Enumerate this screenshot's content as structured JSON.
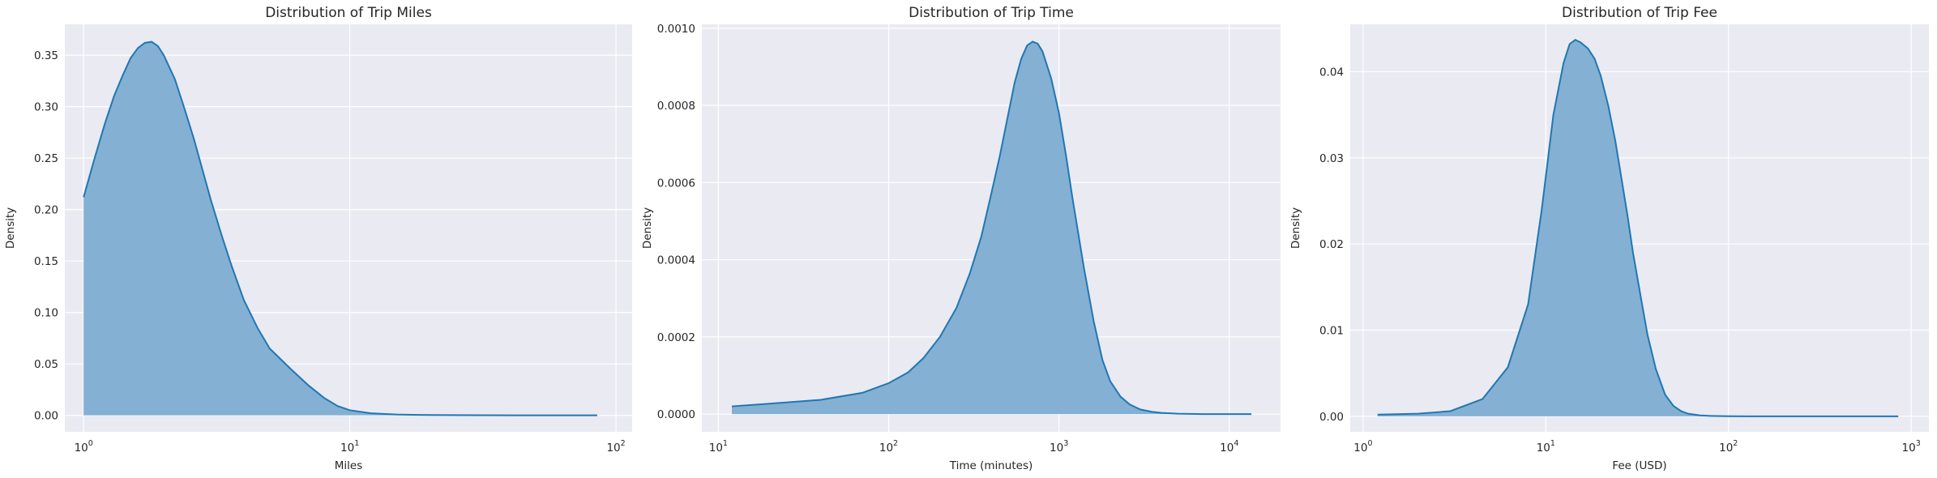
{
  "chart_data": [
    {
      "type": "area",
      "title": "Distribution of Trip Miles",
      "xlabel": "Miles",
      "ylabel": "Density",
      "xscale": "log",
      "xlim": [
        0.85,
        115
      ],
      "ylim": [
        -0.016,
        0.38
      ],
      "x_ticks": [
        {
          "value": 1,
          "base": "10",
          "exp": "0"
        },
        {
          "value": 10,
          "base": "10",
          "exp": "1"
        },
        {
          "value": 100,
          "base": "10",
          "exp": "2"
        }
      ],
      "y_ticks": [
        {
          "value": 0.0,
          "label": "0.00"
        },
        {
          "value": 0.05,
          "label": "0.05"
        },
        {
          "value": 0.1,
          "label": "0.10"
        },
        {
          "value": 0.15,
          "label": "0.15"
        },
        {
          "value": 0.2,
          "label": "0.20"
        },
        {
          "value": 0.25,
          "label": "0.25"
        },
        {
          "value": 0.3,
          "label": "0.30"
        },
        {
          "value": 0.35,
          "label": "0.35"
        }
      ],
      "grid": true,
      "fill_color": "#84b0d3",
      "line_color": "#1f77b4",
      "series": [
        {
          "x": [
            1.0,
            1.1,
            1.2,
            1.3,
            1.4,
            1.5,
            1.6,
            1.7,
            1.8,
            1.9,
            2.0,
            2.2,
            2.4,
            2.6,
            2.8,
            3.0,
            3.3,
            3.6,
            4.0,
            4.5,
            5.0,
            6.0,
            7.0,
            8.0,
            9.0,
            10.0,
            12.0,
            15.0,
            20.0,
            30.0,
            50.0,
            85.0
          ],
          "y": [
            0.212,
            0.25,
            0.283,
            0.31,
            0.33,
            0.347,
            0.357,
            0.362,
            0.363,
            0.359,
            0.35,
            0.327,
            0.297,
            0.268,
            0.238,
            0.21,
            0.175,
            0.145,
            0.112,
            0.085,
            0.065,
            0.045,
            0.029,
            0.017,
            0.009,
            0.005,
            0.002,
            0.0008,
            0.0003,
            0.0001,
            0.0,
            0.0
          ]
        }
      ]
    },
    {
      "type": "area",
      "title": "Distribution of Trip Time",
      "xlabel": "Time (minutes)",
      "ylabel": "Density",
      "xscale": "log",
      "xlim": [
        8.0,
        20000
      ],
      "ylim": [
        -4.6e-05,
        0.00101
      ],
      "x_ticks": [
        {
          "value": 10,
          "base": "10",
          "exp": "1"
        },
        {
          "value": 100,
          "base": "10",
          "exp": "2"
        },
        {
          "value": 1000,
          "base": "10",
          "exp": "3"
        },
        {
          "value": 10000,
          "base": "10",
          "exp": "4"
        }
      ],
      "y_ticks": [
        {
          "value": 0.0,
          "label": "0.0000"
        },
        {
          "value": 0.0002,
          "label": "0.0002"
        },
        {
          "value": 0.0004,
          "label": "0.0004"
        },
        {
          "value": 0.0006,
          "label": "0.0006"
        },
        {
          "value": 0.0008,
          "label": "0.0008"
        },
        {
          "value": 0.001,
          "label": "0.0010"
        }
      ],
      "grid": true,
      "fill_color": "#84b0d3",
      "line_color": "#1f77b4",
      "series": [
        {
          "x": [
            12,
            20,
            40,
            70,
            100,
            130,
            160,
            200,
            250,
            300,
            350,
            400,
            450,
            500,
            550,
            600,
            650,
            700,
            750,
            800,
            900,
            1000,
            1100,
            1200,
            1400,
            1600,
            1800,
            2000,
            2300,
            2600,
            3000,
            3500,
            4000,
            5000,
            7000,
            10000,
            13500
          ],
          "y": [
            2e-05,
            2.7e-05,
            3.7e-05,
            5.5e-05,
            8e-05,
            0.000108,
            0.000145,
            0.0002,
            0.000275,
            0.000365,
            0.00046,
            0.00057,
            0.00067,
            0.00077,
            0.00086,
            0.00092,
            0.000955,
            0.000965,
            0.00096,
            0.00094,
            0.00087,
            0.00078,
            0.00067,
            0.00056,
            0.00038,
            0.00024,
            0.00014,
            8.5e-05,
            4.5e-05,
            2.5e-05,
            1.2e-05,
            6e-06,
            3e-06,
            1e-06,
            0.0,
            0.0,
            0.0
          ]
        }
      ]
    },
    {
      "type": "area",
      "title": "Distribution of Trip Fee",
      "xlabel": "Fee (USD)",
      "ylabel": "Density",
      "xscale": "log",
      "xlim": [
        0.85,
        1250
      ],
      "ylim": [
        -0.0018,
        0.0455
      ],
      "x_ticks": [
        {
          "value": 1,
          "base": "10",
          "exp": "0"
        },
        {
          "value": 10,
          "base": "10",
          "exp": "1"
        },
        {
          "value": 100,
          "base": "10",
          "exp": "2"
        },
        {
          "value": 1000,
          "base": "10",
          "exp": "3"
        }
      ],
      "y_ticks": [
        {
          "value": 0.0,
          "label": "0.00"
        },
        {
          "value": 0.01,
          "label": "0.01"
        },
        {
          "value": 0.02,
          "label": "0.02"
        },
        {
          "value": 0.03,
          "label": "0.03"
        },
        {
          "value": 0.04,
          "label": "0.04"
        }
      ],
      "grid": true,
      "fill_color": "#84b0d3",
      "line_color": "#1f77b4",
      "series": [
        {
          "x": [
            1.2,
            2,
            3,
            4.5,
            6.2,
            8,
            9.5,
            11,
            12.5,
            13.5,
            14.5,
            15.5,
            17,
            18.5,
            20,
            22,
            24,
            26,
            28,
            30,
            33,
            36,
            40,
            45,
            50,
            55,
            60,
            70,
            80,
            100,
            150,
            300,
            850
          ],
          "y": [
            0.0002,
            0.0003,
            0.0006,
            0.002,
            0.0057,
            0.013,
            0.024,
            0.035,
            0.041,
            0.0432,
            0.0437,
            0.0434,
            0.0427,
            0.0415,
            0.0395,
            0.036,
            0.032,
            0.0275,
            0.0233,
            0.019,
            0.014,
            0.0095,
            0.0055,
            0.0025,
            0.0012,
            0.0006,
            0.0003,
            0.0001,
            5e-05,
            1e-05,
            0.0,
            0.0,
            0.0
          ]
        }
      ]
    }
  ]
}
